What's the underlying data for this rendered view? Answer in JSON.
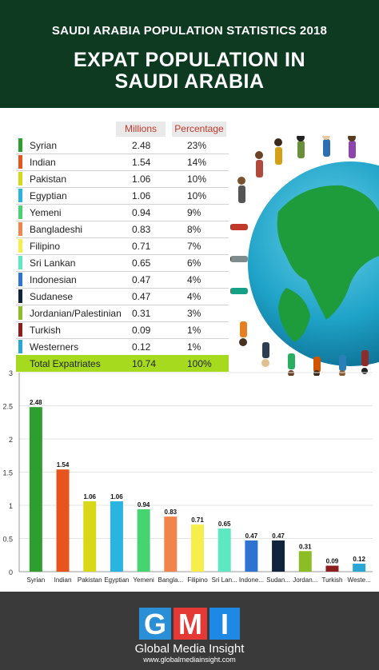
{
  "header": {
    "subtitle": "SAUDI ARABIA POPULATION STATISTICS 2018",
    "title_line1": "EXPAT POPULATION IN",
    "title_line2": "SAUDI ARABIA"
  },
  "table": {
    "col_millions": "Millions",
    "col_percentage": "Percentage",
    "rows": [
      {
        "name": "Syrian",
        "millions": "2.48",
        "pct": "23%",
        "color": "#2e9e2e"
      },
      {
        "name": "Indian",
        "millions": "1.54",
        "pct": "14%",
        "color": "#e8541d"
      },
      {
        "name": "Pakistan",
        "millions": "1.06",
        "pct": "10%",
        "color": "#d9d818"
      },
      {
        "name": "Egyptian",
        "millions": "1.06",
        "pct": "10%",
        "color": "#29b5e0"
      },
      {
        "name": "Yemeni",
        "millions": "0.94",
        "pct": "9%",
        "color": "#45d470"
      },
      {
        "name": "Bangladeshi",
        "millions": "0.83",
        "pct": "8%",
        "color": "#f0844a"
      },
      {
        "name": "Filipino",
        "millions": "0.71",
        "pct": "7%",
        "color": "#f6ee4a"
      },
      {
        "name": "Sri Lankan",
        "millions": "0.65",
        "pct": "6%",
        "color": "#5ee8c2"
      },
      {
        "name": "Indonesian",
        "millions": "0.47",
        "pct": "4%",
        "color": "#2f73d2"
      },
      {
        "name": "Sudanese",
        "millions": "0.47",
        "pct": "4%",
        "color": "#12233e"
      },
      {
        "name": "Jordanian/Palestinian",
        "millions": "0.31",
        "pct": "3%",
        "color": "#8cbc26"
      },
      {
        "name": "Turkish",
        "millions": "0.09",
        "pct": "1%",
        "color": "#8c1e1e"
      },
      {
        "name": "Westerners",
        "millions": "0.12",
        "pct": "1%",
        "color": "#2aa6d4"
      }
    ],
    "total": {
      "name": "Total Expatriates",
      "millions": "10.74",
      "pct": "100%"
    }
  },
  "chart_data": {
    "type": "bar",
    "categories": [
      "Syrian",
      "Indian",
      "Pakistan",
      "Egyptian",
      "Yemeni",
      "Bangla...",
      "Filipino",
      "Sri Lan...",
      "Indone...",
      "Sudan...",
      "Jordan...",
      "Turkish",
      "Weste..."
    ],
    "values": [
      2.48,
      1.54,
      1.06,
      1.06,
      0.94,
      0.83,
      0.71,
      0.65,
      0.47,
      0.47,
      0.31,
      0.09,
      0.12
    ],
    "value_labels": [
      "2.48",
      "1.54",
      "1.06",
      "1.06",
      "0.94",
      "0.83",
      "0.71",
      "0.65",
      "0.47",
      "0.47",
      "0.31",
      "0.09",
      "0.12"
    ],
    "colors": [
      "#2e9e2e",
      "#e8541d",
      "#d9d818",
      "#29b5e0",
      "#45d470",
      "#f0844a",
      "#f6ee4a",
      "#5ee8c2",
      "#2f73d2",
      "#12233e",
      "#8cbc26",
      "#8c1e1e",
      "#2aa6d4"
    ],
    "yticks": [
      "0",
      "0.5",
      "1",
      "1.5",
      "2",
      "2.5",
      "3"
    ],
    "ylim": [
      0,
      3
    ],
    "title": "",
    "xlabel": "",
    "ylabel": ""
  },
  "footer": {
    "logo_g": "G",
    "logo_m": "M",
    "logo_i": "I",
    "brand": "Global Media Insight",
    "site": "www.globalmediainsight.com"
  }
}
